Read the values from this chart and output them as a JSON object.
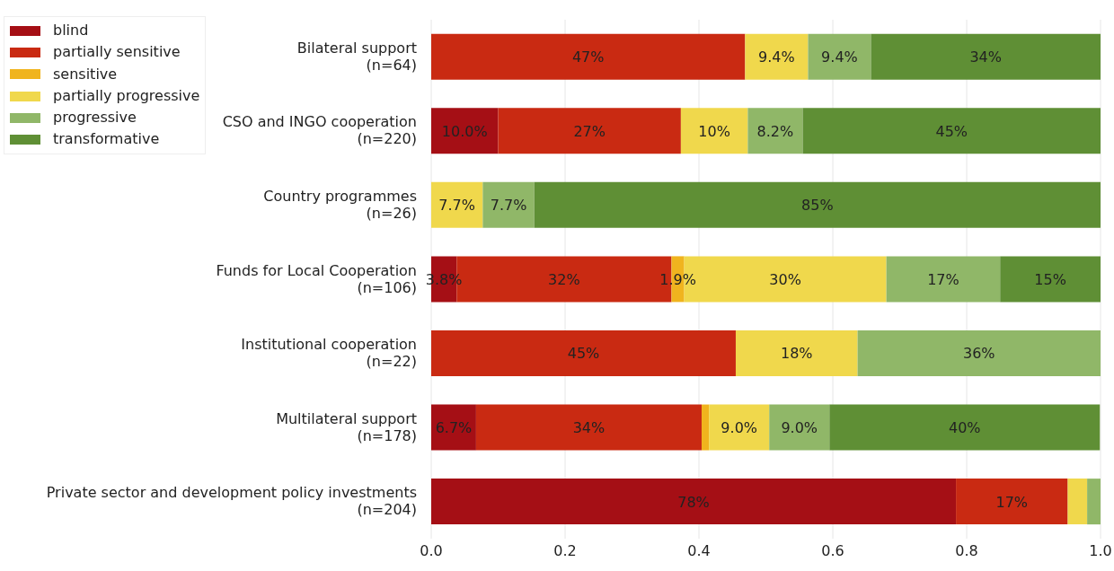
{
  "chart_data": {
    "type": "bar",
    "orientation": "horizontal",
    "stacked": true,
    "categories": [
      "Bilateral support\n(n=64)",
      "CSO and INGO cooperation\n(n=220)",
      "Country programmes\n(n=26)",
      "Funds for Local Cooperation\n(n=106)",
      "Institutional cooperation\n(n=22)",
      "Multilateral support\n(n=178)",
      "Private sector and development policy investments\n(n=204)"
    ],
    "series": [
      {
        "name": "blind",
        "color": "#a50f15",
        "values": [
          null,
          0.1,
          null,
          0.038,
          null,
          0.067,
          0.784
        ],
        "value_labels": [
          null,
          "10.0%",
          null,
          "3.8%",
          null,
          "6.7%",
          "78%"
        ]
      },
      {
        "name": "partially sensitive",
        "color": "#c92a12",
        "values": [
          0.469,
          0.273,
          null,
          0.321,
          0.455,
          0.337,
          0.167
        ],
        "value_labels": [
          "47%",
          "27%",
          null,
          "32%",
          "45%",
          "34%",
          "17%"
        ]
      },
      {
        "name": "sensitive",
        "color": "#f0b41e",
        "values": [
          null,
          null,
          null,
          0.019,
          null,
          0.011,
          null
        ],
        "value_labels": [
          null,
          null,
          null,
          "1.9%",
          null,
          null,
          null
        ]
      },
      {
        "name": "partially progressive",
        "color": "#f0d84c",
        "values": [
          0.094,
          0.1,
          0.077,
          0.302,
          0.182,
          0.09,
          0.029
        ],
        "value_labels": [
          "9.4%",
          "10%",
          "7.7%",
          "30%",
          "18%",
          "9.0%",
          null
        ]
      },
      {
        "name": "progressive",
        "color": "#90b768",
        "values": [
          0.094,
          0.082,
          0.077,
          0.17,
          0.363,
          0.09,
          0.02
        ],
        "value_labels": [
          "9.4%",
          "8.2%",
          "7.7%",
          "17%",
          "36%",
          "9.0%",
          null
        ]
      },
      {
        "name": "transformative",
        "color": "#5f8f35",
        "values": [
          0.343,
          0.445,
          0.846,
          0.15,
          null,
          0.404,
          null
        ],
        "value_labels": [
          "34%",
          "45%",
          "85%",
          "15%",
          null,
          "40%",
          null
        ]
      }
    ],
    "xlim": [
      0,
      1
    ],
    "xticks": [
      {
        "value": 0,
        "label": "0.0"
      },
      {
        "value": 0.2,
        "label": "0.2"
      },
      {
        "value": 0.4,
        "label": "0.4"
      },
      {
        "value": 0.6,
        "label": "0.6"
      },
      {
        "value": 0.8,
        "label": "0.8"
      },
      {
        "value": 1,
        "label": "1.0"
      }
    ],
    "grid": "x",
    "legend": "top left"
  }
}
